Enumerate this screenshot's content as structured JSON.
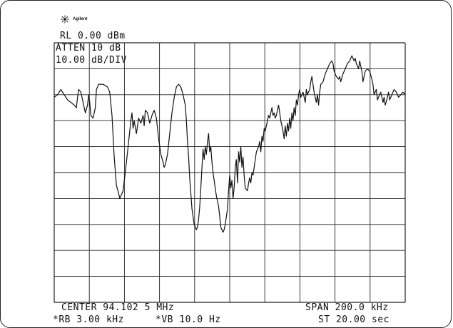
{
  "brand": {
    "name": "Agilent",
    "icon": "agilent-spark-icon"
  },
  "header": {
    "reference_level": "RL 0.00 dBm",
    "attenuation": "ATTEN 10 dB",
    "scale": "10.00 dB/DIV"
  },
  "footer": {
    "center": "CENTER 94.102 5 MHz",
    "span": "SPAN 200.0 kHz",
    "rbw": "*RB 3.00 kHz",
    "vbw": "*VB 10.0 Hz",
    "sweep_time": "ST 20.00 sec"
  },
  "display": {
    "divisions_x": 10,
    "divisions_y": 10,
    "trace_color": "#111111",
    "grid_color": "#222222"
  },
  "trace": [
    [
      0.0,
      79
    ],
    [
      0.15,
      80
    ],
    [
      0.3,
      82
    ],
    [
      0.45,
      80
    ],
    [
      0.6,
      78
    ],
    [
      0.75,
      77
    ],
    [
      0.9,
      76
    ],
    [
      1.0,
      75
    ],
    [
      1.05,
      79
    ],
    [
      1.1,
      82
    ],
    [
      1.2,
      81
    ],
    [
      1.3,
      77
    ],
    [
      1.4,
      73
    ],
    [
      1.5,
      76
    ],
    [
      1.55,
      80
    ],
    [
      1.6,
      77
    ],
    [
      1.65,
      72
    ],
    [
      1.75,
      71
    ],
    [
      1.85,
      75
    ],
    [
      1.9,
      82
    ],
    [
      2.0,
      84
    ],
    [
      2.2,
      84
    ],
    [
      2.4,
      83
    ],
    [
      2.5,
      81
    ],
    [
      2.6,
      72
    ],
    [
      2.7,
      56
    ],
    [
      2.8,
      45
    ],
    [
      2.9,
      42
    ],
    [
      2.95,
      40
    ],
    [
      3.0,
      41
    ],
    [
      3.05,
      42
    ],
    [
      3.1,
      43
    ],
    [
      3.2,
      50
    ],
    [
      3.3,
      58
    ],
    [
      3.4,
      66
    ],
    [
      3.45,
      70
    ],
    [
      3.5,
      73
    ],
    [
      3.55,
      67
    ],
    [
      3.6,
      70
    ],
    [
      3.7,
      65
    ],
    [
      3.8,
      71
    ],
    [
      3.9,
      69
    ],
    [
      4.0,
      72
    ],
    [
      4.05,
      68
    ],
    [
      4.1,
      74
    ],
    [
      4.2,
      73
    ],
    [
      4.3,
      69
    ],
    [
      4.4,
      72
    ],
    [
      4.5,
      74
    ],
    [
      4.6,
      71
    ],
    [
      4.7,
      63
    ],
    [
      4.8,
      57
    ],
    [
      4.9,
      54
    ],
    [
      4.95,
      52
    ],
    [
      5.0,
      53
    ],
    [
      5.05,
      55
    ],
    [
      5.1,
      57
    ],
    [
      5.2,
      65
    ],
    [
      5.3,
      73
    ],
    [
      5.4,
      79
    ],
    [
      5.5,
      83
    ],
    [
      5.6,
      84
    ],
    [
      5.7,
      83
    ],
    [
      5.8,
      80
    ],
    [
      5.9,
      76
    ],
    [
      5.95,
      70
    ],
    [
      6.0,
      62
    ],
    [
      6.05,
      56
    ],
    [
      6.1,
      48
    ],
    [
      6.2,
      36
    ],
    [
      6.3,
      30
    ],
    [
      6.4,
      28
    ],
    [
      6.45,
      29
    ],
    [
      6.5,
      32
    ],
    [
      6.55,
      37
    ],
    [
      6.6,
      44
    ],
    [
      6.65,
      52
    ],
    [
      6.7,
      59
    ],
    [
      6.75,
      55
    ],
    [
      6.8,
      60
    ],
    [
      6.85,
      57
    ],
    [
      6.9,
      62
    ],
    [
      6.95,
      65
    ],
    [
      7.0,
      58
    ],
    [
      7.05,
      60
    ],
    [
      7.1,
      54
    ],
    [
      7.15,
      50
    ],
    [
      7.2,
      47
    ],
    [
      7.3,
      41
    ],
    [
      7.4,
      37
    ],
    [
      7.45,
      33
    ],
    [
      7.5,
      29
    ],
    [
      7.55,
      28
    ],
    [
      7.6,
      27
    ],
    [
      7.65,
      28
    ],
    [
      7.7,
      30
    ],
    [
      7.75,
      33
    ],
    [
      7.8,
      36
    ],
    [
      7.85,
      43
    ],
    [
      7.9,
      49
    ],
    [
      7.95,
      44
    ],
    [
      8.0,
      47
    ],
    [
      8.05,
      40
    ],
    [
      8.1,
      44
    ],
    [
      8.15,
      52
    ],
    [
      8.2,
      55
    ],
    [
      8.25,
      46
    ],
    [
      8.3,
      58
    ],
    [
      8.35,
      54
    ],
    [
      8.4,
      60
    ],
    [
      8.45,
      52
    ],
    [
      8.5,
      56
    ],
    [
      8.55,
      49
    ],
    [
      8.6,
      44
    ],
    [
      8.7,
      43
    ],
    [
      8.75,
      46
    ],
    [
      8.8,
      48
    ],
    [
      8.85,
      46
    ],
    [
      8.9,
      50
    ],
    [
      8.95,
      49
    ],
    [
      9.0,
      52
    ],
    [
      9.05,
      55
    ],
    [
      9.1,
      58
    ],
    [
      9.2,
      60
    ],
    [
      9.25,
      62
    ],
    [
      9.3,
      58
    ],
    [
      9.35,
      64
    ],
    [
      9.4,
      62
    ],
    [
      9.45,
      67
    ],
    [
      9.5,
      66
    ],
    [
      9.55,
      68
    ],
    [
      9.6,
      70
    ],
    [
      9.65,
      72
    ],
    [
      9.7,
      71
    ],
    [
      9.75,
      73
    ],
    [
      9.8,
      75
    ],
    [
      9.85,
      72
    ],
    [
      9.9,
      73
    ],
    [
      9.95,
      71
    ],
    [
      10.0,
      72
    ],
    [
      10.05,
      74
    ],
    [
      10.1,
      76
    ],
    [
      10.15,
      73
    ],
    [
      10.2,
      70
    ],
    [
      10.3,
      66
    ],
    [
      10.35,
      63
    ],
    [
      10.4,
      68
    ],
    [
      10.45,
      64
    ],
    [
      10.5,
      69
    ],
    [
      10.55,
      66
    ],
    [
      10.6,
      71
    ],
    [
      10.65,
      67
    ],
    [
      10.7,
      73
    ],
    [
      10.75,
      70
    ],
    [
      10.8,
      75
    ],
    [
      10.85,
      72
    ],
    [
      10.9,
      78
    ],
    [
      10.95,
      76
    ],
    [
      11.0,
      80
    ],
    [
      11.05,
      82
    ],
    [
      11.1,
      79
    ],
    [
      11.2,
      81
    ],
    [
      11.3,
      77
    ],
    [
      11.35,
      82
    ],
    [
      11.4,
      80
    ],
    [
      11.5,
      82
    ],
    [
      11.55,
      85
    ],
    [
      11.6,
      87
    ],
    [
      11.7,
      81
    ],
    [
      11.75,
      79
    ],
    [
      11.8,
      77
    ],
    [
      11.85,
      80
    ],
    [
      11.9,
      76
    ],
    [
      11.95,
      81
    ],
    [
      12.0,
      84
    ],
    [
      12.1,
      85
    ],
    [
      12.2,
      88
    ],
    [
      12.3,
      90
    ],
    [
      12.4,
      92
    ],
    [
      12.5,
      93
    ],
    [
      12.55,
      92
    ],
    [
      12.6,
      89
    ],
    [
      12.7,
      87
    ],
    [
      12.8,
      86
    ],
    [
      12.85,
      87
    ],
    [
      12.9,
      85
    ],
    [
      13.0,
      88
    ],
    [
      13.1,
      90
    ],
    [
      13.2,
      92
    ],
    [
      13.3,
      93
    ],
    [
      13.35,
      94
    ],
    [
      13.4,
      95
    ],
    [
      13.5,
      93
    ],
    [
      13.55,
      94
    ],
    [
      13.6,
      92
    ],
    [
      13.7,
      90
    ],
    [
      13.75,
      93
    ],
    [
      13.8,
      91
    ],
    [
      13.85,
      89
    ],
    [
      13.9,
      85
    ],
    [
      14.0,
      89
    ],
    [
      14.1,
      90
    ],
    [
      14.2,
      89
    ],
    [
      14.3,
      86
    ],
    [
      14.35,
      84
    ],
    [
      14.4,
      80
    ],
    [
      14.5,
      82
    ],
    [
      14.55,
      78
    ],
    [
      14.6,
      79
    ],
    [
      14.7,
      81
    ],
    [
      14.75,
      79
    ],
    [
      14.8,
      77
    ],
    [
      14.85,
      79
    ],
    [
      14.9,
      76
    ],
    [
      15.0,
      79
    ],
    [
      15.05,
      81
    ],
    [
      15.1,
      78
    ],
    [
      15.2,
      80
    ],
    [
      15.3,
      82
    ],
    [
      15.4,
      81
    ],
    [
      15.5,
      79
    ],
    [
      15.6,
      80
    ],
    [
      15.7,
      81
    ],
    [
      15.8,
      80
    ]
  ]
}
